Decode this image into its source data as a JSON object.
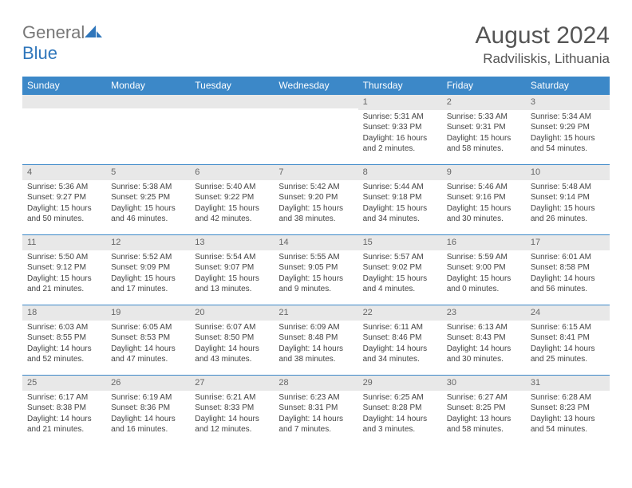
{
  "brand": {
    "word1": "General",
    "word2": "Blue"
  },
  "title": "August 2024",
  "location": "Radviliskis, Lithuania",
  "colors": {
    "header_bg": "#3c88c8",
    "header_text": "#ffffff",
    "daynum_bg": "#e8e8e8",
    "border": "#3c88c8",
    "text": "#444444",
    "brand_gray": "#777777",
    "brand_blue": "#2f76bb"
  },
  "weekdays": [
    "Sunday",
    "Monday",
    "Tuesday",
    "Wednesday",
    "Thursday",
    "Friday",
    "Saturday"
  ],
  "days": [
    {
      "n": 1,
      "sunrise": "5:31 AM",
      "sunset": "9:33 PM",
      "daylight": "16 hours and 2 minutes."
    },
    {
      "n": 2,
      "sunrise": "5:33 AM",
      "sunset": "9:31 PM",
      "daylight": "15 hours and 58 minutes."
    },
    {
      "n": 3,
      "sunrise": "5:34 AM",
      "sunset": "9:29 PM",
      "daylight": "15 hours and 54 minutes."
    },
    {
      "n": 4,
      "sunrise": "5:36 AM",
      "sunset": "9:27 PM",
      "daylight": "15 hours and 50 minutes."
    },
    {
      "n": 5,
      "sunrise": "5:38 AM",
      "sunset": "9:25 PM",
      "daylight": "15 hours and 46 minutes."
    },
    {
      "n": 6,
      "sunrise": "5:40 AM",
      "sunset": "9:22 PM",
      "daylight": "15 hours and 42 minutes."
    },
    {
      "n": 7,
      "sunrise": "5:42 AM",
      "sunset": "9:20 PM",
      "daylight": "15 hours and 38 minutes."
    },
    {
      "n": 8,
      "sunrise": "5:44 AM",
      "sunset": "9:18 PM",
      "daylight": "15 hours and 34 minutes."
    },
    {
      "n": 9,
      "sunrise": "5:46 AM",
      "sunset": "9:16 PM",
      "daylight": "15 hours and 30 minutes."
    },
    {
      "n": 10,
      "sunrise": "5:48 AM",
      "sunset": "9:14 PM",
      "daylight": "15 hours and 26 minutes."
    },
    {
      "n": 11,
      "sunrise": "5:50 AM",
      "sunset": "9:12 PM",
      "daylight": "15 hours and 21 minutes."
    },
    {
      "n": 12,
      "sunrise": "5:52 AM",
      "sunset": "9:09 PM",
      "daylight": "15 hours and 17 minutes."
    },
    {
      "n": 13,
      "sunrise": "5:54 AM",
      "sunset": "9:07 PM",
      "daylight": "15 hours and 13 minutes."
    },
    {
      "n": 14,
      "sunrise": "5:55 AM",
      "sunset": "9:05 PM",
      "daylight": "15 hours and 9 minutes."
    },
    {
      "n": 15,
      "sunrise": "5:57 AM",
      "sunset": "9:02 PM",
      "daylight": "15 hours and 4 minutes."
    },
    {
      "n": 16,
      "sunrise": "5:59 AM",
      "sunset": "9:00 PM",
      "daylight": "15 hours and 0 minutes."
    },
    {
      "n": 17,
      "sunrise": "6:01 AM",
      "sunset": "8:58 PM",
      "daylight": "14 hours and 56 minutes."
    },
    {
      "n": 18,
      "sunrise": "6:03 AM",
      "sunset": "8:55 PM",
      "daylight": "14 hours and 52 minutes."
    },
    {
      "n": 19,
      "sunrise": "6:05 AM",
      "sunset": "8:53 PM",
      "daylight": "14 hours and 47 minutes."
    },
    {
      "n": 20,
      "sunrise": "6:07 AM",
      "sunset": "8:50 PM",
      "daylight": "14 hours and 43 minutes."
    },
    {
      "n": 21,
      "sunrise": "6:09 AM",
      "sunset": "8:48 PM",
      "daylight": "14 hours and 38 minutes."
    },
    {
      "n": 22,
      "sunrise": "6:11 AM",
      "sunset": "8:46 PM",
      "daylight": "14 hours and 34 minutes."
    },
    {
      "n": 23,
      "sunrise": "6:13 AM",
      "sunset": "8:43 PM",
      "daylight": "14 hours and 30 minutes."
    },
    {
      "n": 24,
      "sunrise": "6:15 AM",
      "sunset": "8:41 PM",
      "daylight": "14 hours and 25 minutes."
    },
    {
      "n": 25,
      "sunrise": "6:17 AM",
      "sunset": "8:38 PM",
      "daylight": "14 hours and 21 minutes."
    },
    {
      "n": 26,
      "sunrise": "6:19 AM",
      "sunset": "8:36 PM",
      "daylight": "14 hours and 16 minutes."
    },
    {
      "n": 27,
      "sunrise": "6:21 AM",
      "sunset": "8:33 PM",
      "daylight": "14 hours and 12 minutes."
    },
    {
      "n": 28,
      "sunrise": "6:23 AM",
      "sunset": "8:31 PM",
      "daylight": "14 hours and 7 minutes."
    },
    {
      "n": 29,
      "sunrise": "6:25 AM",
      "sunset": "8:28 PM",
      "daylight": "14 hours and 3 minutes."
    },
    {
      "n": 30,
      "sunrise": "6:27 AM",
      "sunset": "8:25 PM",
      "daylight": "13 hours and 58 minutes."
    },
    {
      "n": 31,
      "sunrise": "6:28 AM",
      "sunset": "8:23 PM",
      "daylight": "13 hours and 54 minutes."
    }
  ],
  "first_weekday_index": 4,
  "labels": {
    "sunrise": "Sunrise:",
    "sunset": "Sunset:",
    "daylight": "Daylight:"
  }
}
